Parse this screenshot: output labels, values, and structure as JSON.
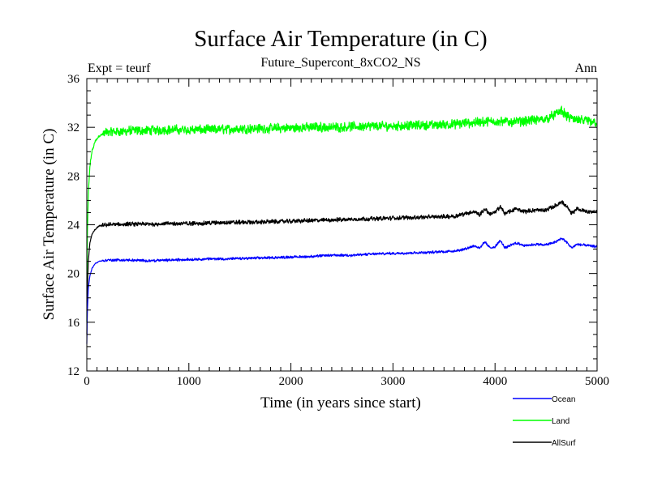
{
  "chart_data": {
    "type": "line",
    "title": "Surface Air Temperature (in C)",
    "subtitle": "Future_Supercont_8xCO2_NS",
    "left_note": "Expt = teurf",
    "right_note": "Ann",
    "xlabel": "Time (in years since start)",
    "ylabel": "Surface Air Temperature (in C)",
    "xlim": [
      0,
      5000
    ],
    "ylim": [
      12,
      36
    ],
    "x_ticks": [
      0,
      1000,
      2000,
      3000,
      4000,
      5000
    ],
    "y_ticks": [
      12,
      16,
      20,
      24,
      28,
      32,
      36
    ],
    "grid": false,
    "legend_position": "bottom-right",
    "series": [
      {
        "name": "Ocean",
        "color": "#0000ff",
        "noise": 0.12,
        "points": [
          [
            0,
            14.2
          ],
          [
            5,
            16.8
          ],
          [
            15,
            18.8
          ],
          [
            30,
            19.8
          ],
          [
            50,
            20.4
          ],
          [
            80,
            20.8
          ],
          [
            120,
            21.0
          ],
          [
            200,
            21.1
          ],
          [
            400,
            21.1
          ],
          [
            600,
            21.05
          ],
          [
            800,
            21.1
          ],
          [
            1000,
            21.15
          ],
          [
            1200,
            21.2
          ],
          [
            1400,
            21.2
          ],
          [
            1600,
            21.25
          ],
          [
            1800,
            21.3
          ],
          [
            2000,
            21.35
          ],
          [
            2200,
            21.4
          ],
          [
            2400,
            21.5
          ],
          [
            2600,
            21.5
          ],
          [
            2800,
            21.6
          ],
          [
            3000,
            21.65
          ],
          [
            3200,
            21.7
          ],
          [
            3400,
            21.75
          ],
          [
            3600,
            21.85
          ],
          [
            3700,
            22.0
          ],
          [
            3800,
            22.3
          ],
          [
            3850,
            22.05
          ],
          [
            3900,
            22.6
          ],
          [
            3950,
            22.1
          ],
          [
            4000,
            22.2
          ],
          [
            4050,
            22.7
          ],
          [
            4100,
            22.1
          ],
          [
            4200,
            22.5
          ],
          [
            4300,
            22.3
          ],
          [
            4400,
            22.4
          ],
          [
            4500,
            22.35
          ],
          [
            4600,
            22.6
          ],
          [
            4650,
            22.9
          ],
          [
            4700,
            22.6
          ],
          [
            4750,
            22.1
          ],
          [
            4800,
            22.4
          ],
          [
            4900,
            22.3
          ],
          [
            5000,
            22.2
          ]
        ]
      },
      {
        "name": "Land",
        "color": "#00ff00",
        "noise": 0.45,
        "points": [
          [
            0,
            16.0
          ],
          [
            5,
            23.0
          ],
          [
            15,
            26.5
          ],
          [
            30,
            28.8
          ],
          [
            50,
            30.0
          ],
          [
            80,
            30.8
          ],
          [
            120,
            31.3
          ],
          [
            200,
            31.6
          ],
          [
            400,
            31.7
          ],
          [
            600,
            31.75
          ],
          [
            800,
            31.8
          ],
          [
            1000,
            31.8
          ],
          [
            1200,
            31.8
          ],
          [
            1400,
            31.85
          ],
          [
            1600,
            31.9
          ],
          [
            1800,
            31.9
          ],
          [
            2000,
            31.95
          ],
          [
            2200,
            32.0
          ],
          [
            2400,
            32.0
          ],
          [
            2600,
            32.05
          ],
          [
            2800,
            32.1
          ],
          [
            3000,
            32.1
          ],
          [
            3200,
            32.15
          ],
          [
            3400,
            32.2
          ],
          [
            3600,
            32.25
          ],
          [
            3800,
            32.4
          ],
          [
            4000,
            32.5
          ],
          [
            4200,
            32.45
          ],
          [
            4400,
            32.6
          ],
          [
            4500,
            32.7
          ],
          [
            4600,
            33.1
          ],
          [
            4650,
            33.4
          ],
          [
            4700,
            32.9
          ],
          [
            4800,
            32.6
          ],
          [
            4900,
            32.5
          ],
          [
            5000,
            32.4
          ]
        ]
      },
      {
        "name": "AllSurf",
        "color": "#000000",
        "noise": 0.2,
        "points": [
          [
            0,
            15.0
          ],
          [
            5,
            18.5
          ],
          [
            15,
            21.0
          ],
          [
            30,
            22.5
          ],
          [
            50,
            23.2
          ],
          [
            80,
            23.6
          ],
          [
            120,
            23.9
          ],
          [
            200,
            24.0
          ],
          [
            400,
            24.05
          ],
          [
            600,
            24.05
          ],
          [
            800,
            24.1
          ],
          [
            1000,
            24.1
          ],
          [
            1200,
            24.15
          ],
          [
            1400,
            24.2
          ],
          [
            1600,
            24.2
          ],
          [
            1800,
            24.25
          ],
          [
            2000,
            24.3
          ],
          [
            2200,
            24.35
          ],
          [
            2400,
            24.4
          ],
          [
            2600,
            24.45
          ],
          [
            2800,
            24.5
          ],
          [
            3000,
            24.55
          ],
          [
            3200,
            24.6
          ],
          [
            3400,
            24.65
          ],
          [
            3600,
            24.7
          ],
          [
            3700,
            24.9
          ],
          [
            3800,
            25.1
          ],
          [
            3850,
            24.8
          ],
          [
            3900,
            25.3
          ],
          [
            3950,
            24.9
          ],
          [
            4000,
            25.0
          ],
          [
            4050,
            25.5
          ],
          [
            4100,
            24.9
          ],
          [
            4200,
            25.3
          ],
          [
            4300,
            25.1
          ],
          [
            4400,
            25.2
          ],
          [
            4500,
            25.2
          ],
          [
            4600,
            25.6
          ],
          [
            4650,
            25.9
          ],
          [
            4700,
            25.5
          ],
          [
            4750,
            24.9
          ],
          [
            4800,
            25.3
          ],
          [
            4900,
            25.1
          ],
          [
            5000,
            25.05
          ]
        ]
      }
    ]
  }
}
